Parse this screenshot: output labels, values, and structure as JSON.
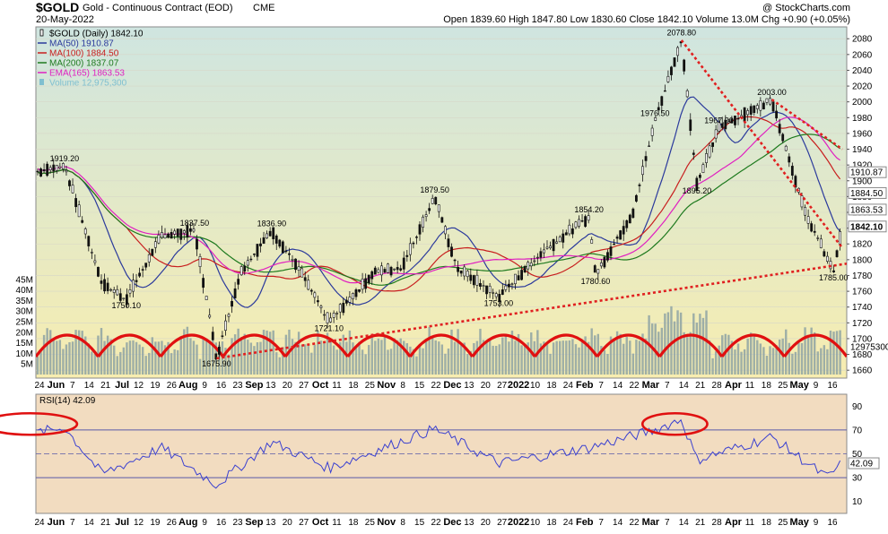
{
  "header": {
    "symbol": "$GOLD",
    "name": "Gold - Continuous Contract (EOD)",
    "exchange": "CME",
    "date": "20-May-2022",
    "watermark": "@ StockCharts.com",
    "ohlc": "Open 1839.60  High 1847.80  Low 1830.60  Close 1842.10  Volume 13.0M  Chg +0.90 (+0.05%)"
  },
  "legend": [
    {
      "text": "$GOLD (Daily) 1842.10",
      "color": "#000000",
      "marker": "candle-icon"
    },
    {
      "text": "MA(50) 1910.87",
      "color": "#2b3a9c",
      "marker": "line"
    },
    {
      "text": "MA(100) 1884.50",
      "color": "#c81e1e",
      "marker": "line"
    },
    {
      "text": "MA(200) 1837.07",
      "color": "#1e7a1e",
      "marker": "line"
    },
    {
      "text": "EMA(165) 1863.53",
      "color": "#e020c0",
      "marker": "line"
    },
    {
      "text": "Volume 12,975,300",
      "color": "#7fbfd0",
      "marker": "bar"
    }
  ],
  "colors": {
    "price_bg_top": "#cfe5e0",
    "price_bg_bottom": "#f7edb0",
    "rsi_bg": "#f2dcc0",
    "ma50": "#2b3a9c",
    "ma100": "#c81e1e",
    "ma200": "#1e7a1e",
    "ema165": "#e020c0",
    "volume": "#8ea3a3",
    "trendline": "#e02020",
    "rsi": "#3a40d0"
  },
  "chart_data": [
    {
      "type": "candlestick",
      "panel": "price",
      "ylim": [
        1650,
        2095
      ],
      "yticks": [
        1660,
        1680,
        1700,
        1720,
        1740,
        1760,
        1780,
        1800,
        1820,
        1840,
        1860,
        1880,
        1900,
        1920,
        1940,
        1960,
        1980,
        2000,
        2020,
        2040,
        2060,
        2080
      ],
      "date_axis": [
        "24",
        "Jun",
        "7",
        "14",
        "21",
        "Jul",
        "12",
        "19",
        "26",
        "Aug",
        "9",
        "16",
        "23",
        "Sep",
        "13",
        "20",
        "27",
        "Oct",
        "11",
        "18",
        "25",
        "Nov",
        "8",
        "15",
        "22",
        "Dec",
        "13",
        "20",
        "27",
        "2022",
        "10",
        "18",
        "24",
        "Feb",
        "7",
        "14",
        "22",
        "Mar",
        "7",
        "14",
        "21",
        "28",
        "Apr",
        "11",
        "18",
        "25",
        "May",
        "9",
        "16"
      ],
      "price_anchors": [
        {
          "date": "May 2021",
          "value": 1900
        },
        {
          "date": "Jun 1 2021",
          "value": 1919.2
        },
        {
          "date": "Jun 18 2021",
          "value": 1770
        },
        {
          "date": "Jun 29 2021",
          "value": 1750.1
        },
        {
          "date": "Jul 15 2021",
          "value": 1830
        },
        {
          "date": "Jul 30 2021",
          "value": 1837.5
        },
        {
          "date": "Aug 9 2021",
          "value": 1675.9
        },
        {
          "date": "Aug 20 2021",
          "value": 1785
        },
        {
          "date": "Sep 3 2021",
          "value": 1836.9
        },
        {
          "date": "Sep 15 2021",
          "value": 1790
        },
        {
          "date": "Sep 29 2021",
          "value": 1721.1
        },
        {
          "date": "Oct 20 2021",
          "value": 1785
        },
        {
          "date": "Nov 1 2021",
          "value": 1790
        },
        {
          "date": "Nov 16 2021",
          "value": 1879.5
        },
        {
          "date": "Nov 26 2021",
          "value": 1790
        },
        {
          "date": "Dec 15 2021",
          "value": 1753
        },
        {
          "date": "Jan 4 2022",
          "value": 1810
        },
        {
          "date": "Jan 25 2022",
          "value": 1854.2
        },
        {
          "date": "Jan 28 2022",
          "value": 1780.6
        },
        {
          "date": "Feb 14 2022",
          "value": 1860
        },
        {
          "date": "Feb 24 2022",
          "value": 1976.5
        },
        {
          "date": "Mar 8 2022",
          "value": 2078.8
        },
        {
          "date": "Mar 15 2022",
          "value": 1895.2
        },
        {
          "date": "Mar 25 2022",
          "value": 1967.2
        },
        {
          "date": "Apr 18 2022",
          "value": 2003
        },
        {
          "date": "May 3 2022",
          "value": 1860
        },
        {
          "date": "May 16 2022",
          "value": 1785
        },
        {
          "date": "May 20 2022",
          "value": 1842.1
        }
      ],
      "annotations": [
        {
          "label": "1919.20",
          "value": 1919.2
        },
        {
          "label": "1750.10",
          "value": 1750.1
        },
        {
          "label": "1837.50",
          "value": 1837.5
        },
        {
          "label": "1675.90",
          "value": 1675.9
        },
        {
          "label": "1836.90",
          "value": 1836.9
        },
        {
          "label": "1721.10",
          "value": 1721.1
        },
        {
          "label": "1879.50",
          "value": 1879.5
        },
        {
          "label": "1753.00",
          "value": 1753.0
        },
        {
          "label": "1854.20",
          "value": 1854.2
        },
        {
          "label": "1780.60",
          "value": 1780.6
        },
        {
          "label": "1976.50",
          "value": 1976.5
        },
        {
          "label": "2078.80",
          "value": 2078.8
        },
        {
          "label": "1895.20",
          "value": 1895.2
        },
        {
          "label": "1967.20",
          "value": 1967.2
        },
        {
          "label": "2003.00",
          "value": 2003.0
        },
        {
          "label": "1785.00",
          "value": 1785.0
        }
      ],
      "right_labels": [
        {
          "label": "1910.87",
          "value": 1910.87
        },
        {
          "label": "1884.50",
          "value": 1884.5
        },
        {
          "label": "1863.53",
          "value": 1863.53
        },
        {
          "label": "1842.10",
          "value": 1842.1
        },
        {
          "label": "12975300",
          "value": 1690
        }
      ],
      "volume_ticks": [
        "5M",
        "10M",
        "15M",
        "20M",
        "25M",
        "30M",
        "35M",
        "40M",
        "45M"
      ],
      "volume_range_millions": [
        0,
        50
      ],
      "volume_arcs": 13,
      "trendlines": [
        {
          "name": "support",
          "from": {
            "date": "Aug 9 2021",
            "value": 1675
          },
          "to": {
            "date": "May 20 2022",
            "value": 1795
          }
        },
        {
          "name": "resistance",
          "from": {
            "date": "Mar 8 2022",
            "value": 2078
          },
          "to": {
            "date": "May 20 2022",
            "value": 1815
          }
        },
        {
          "name": "resistance-2",
          "from": {
            "date": "Apr 18 2022",
            "value": 2003
          },
          "to": {
            "date": "May 20 2022",
            "value": 1940
          }
        }
      ]
    },
    {
      "type": "line",
      "panel": "rsi",
      "label": "RSI(14) 42.09",
      "ylim": [
        0,
        100
      ],
      "yticks": [
        10,
        30,
        50,
        70,
        90
      ],
      "levels": [
        30,
        50,
        70
      ],
      "last_label": "42.09",
      "last_value": 42.09,
      "anchors": [
        {
          "date": "May 2021",
          "value": 62
        },
        {
          "date": "Jun 1 2021",
          "value": 72
        },
        {
          "date": "Jun 18 2021",
          "value": 33
        },
        {
          "date": "Jul 15 2021",
          "value": 55
        },
        {
          "date": "Aug 9 2021",
          "value": 24
        },
        {
          "date": "Sep 3 2021",
          "value": 60
        },
        {
          "date": "Sep 29 2021",
          "value": 38
        },
        {
          "date": "Nov 16 2021",
          "value": 71
        },
        {
          "date": "Dec 15 2021",
          "value": 42
        },
        {
          "date": "Jan 25 2022",
          "value": 55
        },
        {
          "date": "Feb 24 2022",
          "value": 70
        },
        {
          "date": "Mar 8 2022",
          "value": 79
        },
        {
          "date": "Mar 15 2022",
          "value": 45
        },
        {
          "date": "Apr 18 2022",
          "value": 64
        },
        {
          "date": "May 13 2022",
          "value": 30
        },
        {
          "date": "May 20 2022",
          "value": 42.09
        }
      ],
      "highlights": [
        {
          "from": "May 2021",
          "to": "Jun 1 2021"
        },
        {
          "from": "Feb 24 2022",
          "to": "Mar 14 2022"
        }
      ]
    }
  ]
}
